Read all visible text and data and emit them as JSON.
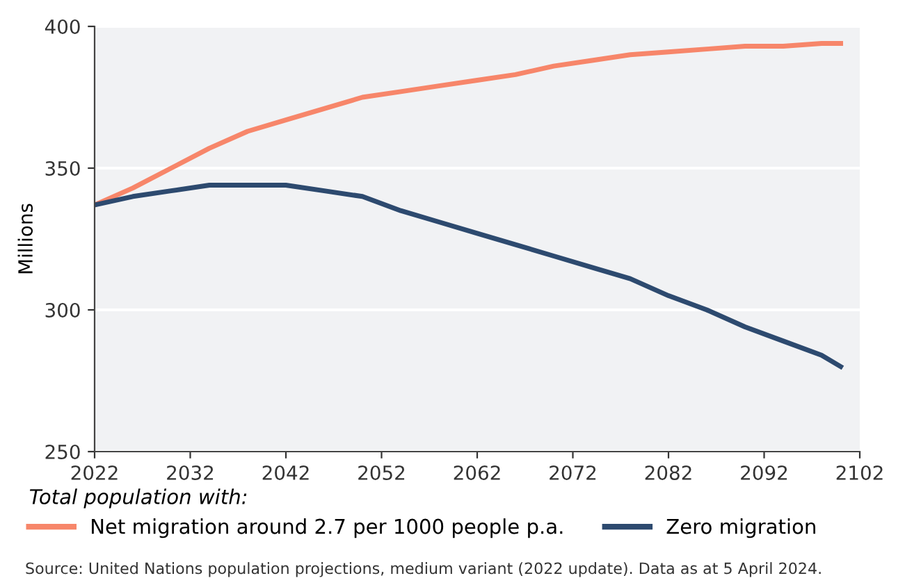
{
  "chart_data": {
    "type": "line",
    "ylabel": "Millions",
    "legend_title": "Total population with:",
    "legend": "bottom",
    "grid": "y",
    "x": [
      2022,
      2026,
      2030,
      2034,
      2038,
      2042,
      2046,
      2050,
      2054,
      2058,
      2062,
      2066,
      2070,
      2074,
      2078,
      2082,
      2086,
      2090,
      2094,
      2098,
      2100
    ],
    "series": [
      {
        "name": "Net migration around 2.7 per 1000 people p.a.",
        "color": "#f7866a",
        "values": [
          337,
          343,
          350,
          357,
          363,
          367,
          371,
          375,
          377,
          379,
          381,
          383,
          386,
          388,
          390,
          391,
          392,
          393,
          393,
          394,
          394
        ]
      },
      {
        "name": "Zero migration",
        "color": "#2d4a6f",
        "values": [
          337,
          340,
          342,
          344,
          344,
          344,
          342,
          340,
          335,
          331,
          327,
          323,
          319,
          315,
          311,
          305,
          300,
          294,
          289,
          284,
          280
        ]
      }
    ],
    "xlim": [
      2022,
      2102
    ],
    "xticks": [
      2022,
      2032,
      2042,
      2052,
      2062,
      2072,
      2082,
      2092,
      2102
    ],
    "ylim": [
      250,
      400
    ],
    "yticks": [
      250,
      300,
      350,
      400
    ],
    "annotations": [
      "Source: United Nations population projections, medium variant (2022 update). Data as at 5 April 2024."
    ]
  }
}
